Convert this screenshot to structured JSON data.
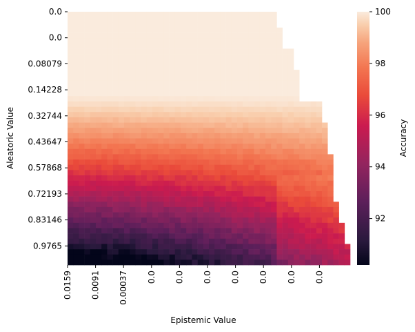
{
  "chart_data": {
    "type": "heatmap",
    "title": "",
    "xlabel": "Epistemic Value",
    "ylabel": "Aleatoric Value",
    "x_tick_labels": [
      "0.0159",
      "0.0091",
      "0.00037",
      "0.0",
      "0.0",
      "0.0",
      "0.0",
      "0.0",
      "0.0",
      "0.0"
    ],
    "y_tick_labels": [
      "0.0",
      "0.0",
      "0.08079",
      "0.14228",
      "0.32744",
      "0.43647",
      "0.57868",
      "0.72193",
      "0.83146",
      "0.9765"
    ],
    "colorbar": {
      "label": "Accuracy",
      "range": [
        90.2,
        100
      ],
      "ticks": [
        "92",
        "94",
        "96",
        "98",
        "100"
      ],
      "tick_values": [
        92,
        94,
        96,
        98,
        100
      ],
      "colormap": "rocket"
    },
    "grid": {
      "rows": 48,
      "cols": 50,
      "upper_region_accuracy": 100,
      "min_accuracy": 90.2,
      "description": "Upper rows ~100; accuracy drops toward bottom-left; right boundary of data expands from col 38 (top) to col 50 (bottom)"
    }
  }
}
